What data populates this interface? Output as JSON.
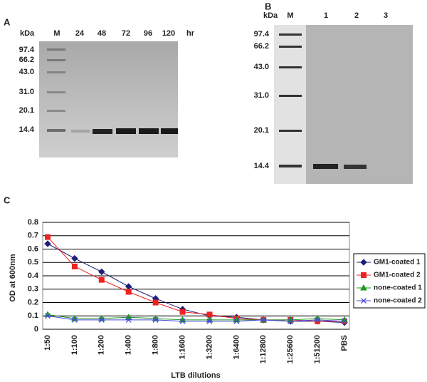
{
  "panel_labels": [
    "A",
    "B",
    "C"
  ],
  "gel_a": {
    "unit_label": "kDa",
    "markers": [
      "97.4",
      "66.2",
      "43.0",
      "31.0",
      "20.1",
      "14.4"
    ],
    "lanes": [
      "M",
      "24",
      "48",
      "72",
      "96",
      "120"
    ],
    "lane_unit": "hr"
  },
  "gel_b": {
    "unit_label": "kDa",
    "markers": [
      "97.4",
      "66.2",
      "43.0",
      "31.0",
      "20.1",
      "14.4"
    ],
    "lanes": [
      "M",
      "1",
      "2",
      "3"
    ]
  },
  "chart_data": {
    "type": "line",
    "x_label": "LTB dilutions",
    "y_label": "OD at 600nm",
    "categories": [
      "1:50",
      "1:100",
      "1:200",
      "1:400",
      "1:800",
      "1:1600",
      "1:3200",
      "1:6400",
      "1:12800",
      "1:25600",
      "1:51200",
      "PBS"
    ],
    "series": [
      {
        "name": "GM1-coated 1",
        "color": "#1f1f7a",
        "marker": "diamond",
        "values": [
          0.64,
          0.53,
          0.43,
          0.32,
          0.23,
          0.15,
          0.1,
          0.09,
          0.07,
          0.06,
          0.06,
          0.05
        ]
      },
      {
        "name": "GM1-coated 2",
        "color": "#ee2222",
        "marker": "square",
        "values": [
          0.69,
          0.47,
          0.37,
          0.28,
          0.2,
          0.13,
          0.11,
          0.08,
          0.07,
          0.07,
          0.06,
          0.06
        ]
      },
      {
        "name": "none-coated 1",
        "color": "#1a9a1a",
        "marker": "triangle",
        "values": [
          0.11,
          0.08,
          0.08,
          0.09,
          0.08,
          0.07,
          0.07,
          0.07,
          0.07,
          0.07,
          0.08,
          0.07
        ]
      },
      {
        "name": "none-coated 2",
        "color": "#4a4ae0",
        "marker": "x",
        "values": [
          0.1,
          0.07,
          0.07,
          0.07,
          0.07,
          0.06,
          0.06,
          0.06,
          0.07,
          0.06,
          0.07,
          0.06
        ]
      }
    ],
    "ylim": [
      0,
      0.8
    ],
    "yticks": [
      0,
      0.1,
      0.2,
      0.3,
      0.4,
      0.5,
      0.6,
      0.7,
      0.8
    ],
    "grid": true,
    "legend": "right"
  }
}
